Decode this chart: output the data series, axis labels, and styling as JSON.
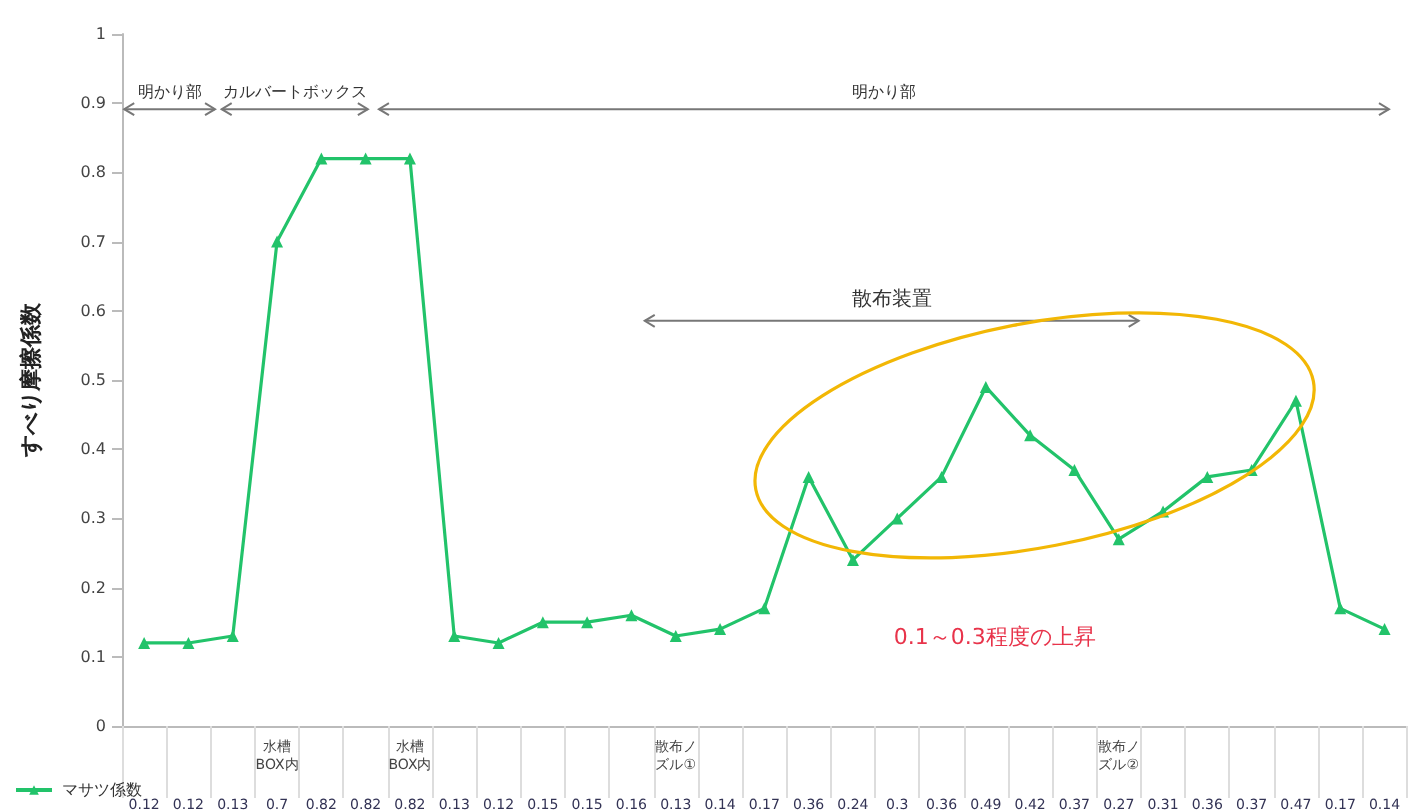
{
  "chart_data": {
    "type": "line",
    "ylabel": "すべり摩擦係数",
    "categories": [
      null,
      null,
      null,
      "水槽BOX内",
      null,
      null,
      "水槽BOX内",
      null,
      null,
      null,
      null,
      null,
      "散布ノズル①",
      null,
      null,
      null,
      null,
      null,
      null,
      null,
      null,
      null,
      "散布ノズル②",
      null,
      null,
      null,
      null,
      null,
      null
    ],
    "series": [
      {
        "name": "マサツ係数",
        "color": "#22c36a",
        "values": [
          0.12,
          0.12,
          0.13,
          0.7,
          0.82,
          0.82,
          0.82,
          0.13,
          0.12,
          0.15,
          0.15,
          0.16,
          0.13,
          0.14,
          0.17,
          0.36,
          0.24,
          0.3,
          0.36,
          0.49,
          0.42,
          0.37,
          0.27,
          0.31,
          0.36,
          0.37,
          0.47,
          0.17,
          0.14
        ]
      }
    ],
    "ylim": [
      0,
      1
    ],
    "yticks": [
      0,
      0.1,
      0.2,
      0.3,
      0.4,
      0.5,
      0.6,
      0.7,
      0.8,
      0.9,
      1
    ],
    "annotations": [
      "明かり部",
      "カルバートボックス",
      "明かり部",
      "散布装置",
      "0.1～0.3程度の上昇"
    ],
    "data_labels": true,
    "grid": false,
    "legend": "bottom left",
    "marker": "triangle",
    "line_style": "solid"
  }
}
